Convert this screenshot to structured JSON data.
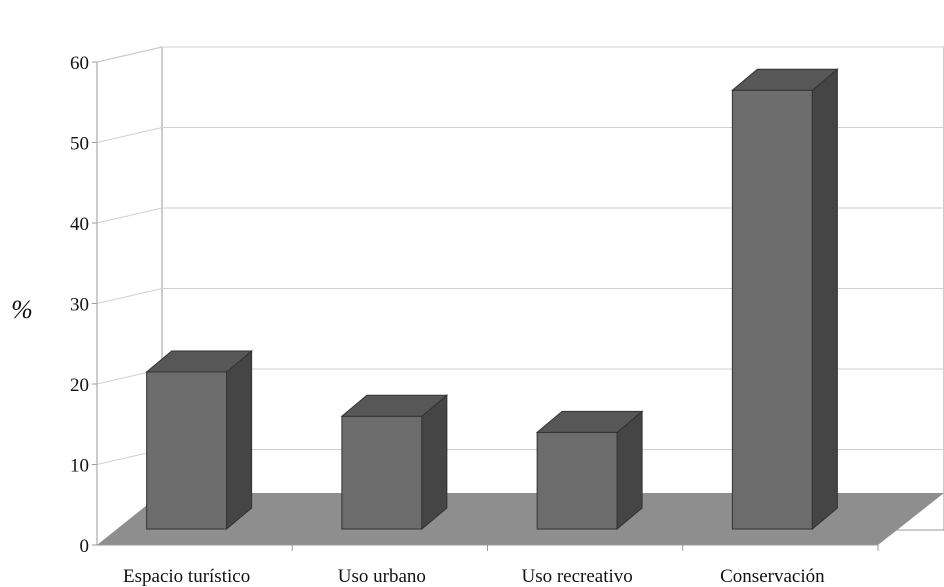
{
  "chart_data": {
    "type": "bar",
    "style": "3d-column",
    "categories": [
      "Espacio turístico",
      "Uso urbano",
      "Uso recreativo",
      "Conservación"
    ],
    "values": [
      19.5,
      14,
      12,
      54.5
    ],
    "title": "",
    "xlabel": "",
    "ylabel": "%",
    "ylim": [
      0,
      60
    ],
    "yticks": [
      0,
      10,
      20,
      30,
      40,
      50,
      60
    ],
    "grid": true,
    "legend": "none"
  },
  "colors": {
    "bar_front": "#6c6c6c",
    "bar_top": "#575757",
    "bar_side": "#454545",
    "floor": "#8e8e8e",
    "walls": "#ffffff",
    "gridline": "#cfcfcf",
    "axis": "#9a9a9a"
  }
}
